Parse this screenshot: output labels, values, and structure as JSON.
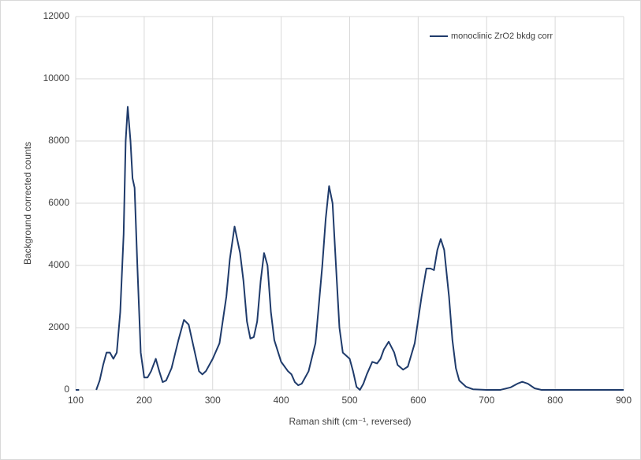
{
  "chart_data": {
    "type": "line",
    "xlabel": "Raman shift (cm⁻¹, reversed)",
    "ylabel": "Background corrected counts",
    "x": [
      100,
      105,
      null,
      130,
      135,
      140,
      145,
      150,
      155,
      160,
      165,
      170,
      173,
      176,
      180,
      183,
      186,
      190,
      195,
      200,
      205,
      210,
      217,
      222,
      227,
      232,
      240,
      250,
      258,
      265,
      272,
      280,
      285,
      290,
      300,
      310,
      320,
      325,
      332,
      340,
      345,
      350,
      355,
      360,
      365,
      370,
      375,
      380,
      385,
      390,
      400,
      410,
      415,
      420,
      425,
      430,
      440,
      450,
      460,
      465,
      470,
      475,
      480,
      485,
      490,
      500,
      505,
      510,
      515,
      520,
      525,
      533,
      540,
      545,
      550,
      557,
      565,
      570,
      578,
      585,
      595,
      605,
      612,
      618,
      623,
      628,
      633,
      638,
      645,
      650,
      655,
      660,
      670,
      680,
      700,
      720,
      735,
      745,
      752,
      760,
      770,
      780,
      900
    ],
    "series": [
      {
        "name": "monoclinic ZrO2 bkdg corr",
        "color": "#1f3b6b",
        "values": [
          0,
          0,
          null,
          0,
          300,
          800,
          1200,
          1200,
          1000,
          1200,
          2500,
          5000,
          8000,
          9100,
          8000,
          6800,
          6500,
          4000,
          1200,
          400,
          400,
          600,
          1000,
          600,
          250,
          300,
          700,
          1600,
          2250,
          2100,
          1400,
          600,
          500,
          600,
          1000,
          1500,
          3000,
          4200,
          5250,
          4400,
          3500,
          2200,
          1650,
          1700,
          2200,
          3500,
          4400,
          4000,
          2500,
          1600,
          900,
          600,
          500,
          250,
          150,
          200,
          600,
          1500,
          4000,
          5500,
          6550,
          6000,
          4000,
          2000,
          1200,
          1000,
          600,
          100,
          0,
          200,
          500,
          900,
          850,
          1000,
          1300,
          1550,
          1200,
          800,
          650,
          750,
          1500,
          3000,
          3900,
          3900,
          3850,
          4500,
          4850,
          4500,
          3000,
          1600,
          700,
          300,
          100,
          20,
          0,
          0,
          80,
          200,
          260,
          200,
          50,
          0,
          0
        ]
      }
    ],
    "xlim": [
      100,
      900
    ],
    "xticks": [
      100,
      200,
      300,
      400,
      500,
      600,
      700,
      800,
      900
    ],
    "ylim": [
      0,
      12000
    ],
    "yticks": [
      0,
      2000,
      4000,
      6000,
      8000,
      10000,
      12000
    ],
    "grid": true,
    "legend": "upper right"
  }
}
